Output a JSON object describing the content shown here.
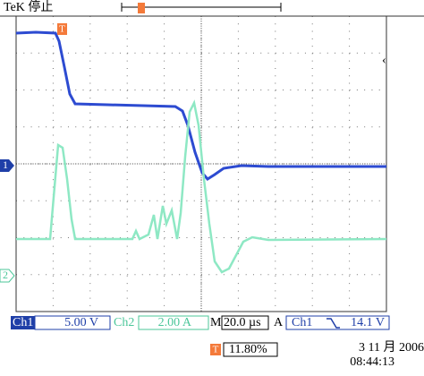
{
  "header": {
    "status": "TeK 停止"
  },
  "markers": {
    "trigger": "T",
    "ch1": "1",
    "ch2": "2"
  },
  "footer": {
    "ch1_label": "Ch1",
    "ch1_scale": "5.00 V",
    "ch2_label": "Ch2",
    "ch2_scale": "2.00 A",
    "time_label": "M",
    "time_scale": "20.0 µs",
    "trigger_label": "A",
    "trigger_source": "Ch1",
    "trigger_level": "14.1 V",
    "trigger_position_marker": "T",
    "trigger_position": "11.80%",
    "date": "3 11 月 2006",
    "time": "08:44:13"
  }
}
